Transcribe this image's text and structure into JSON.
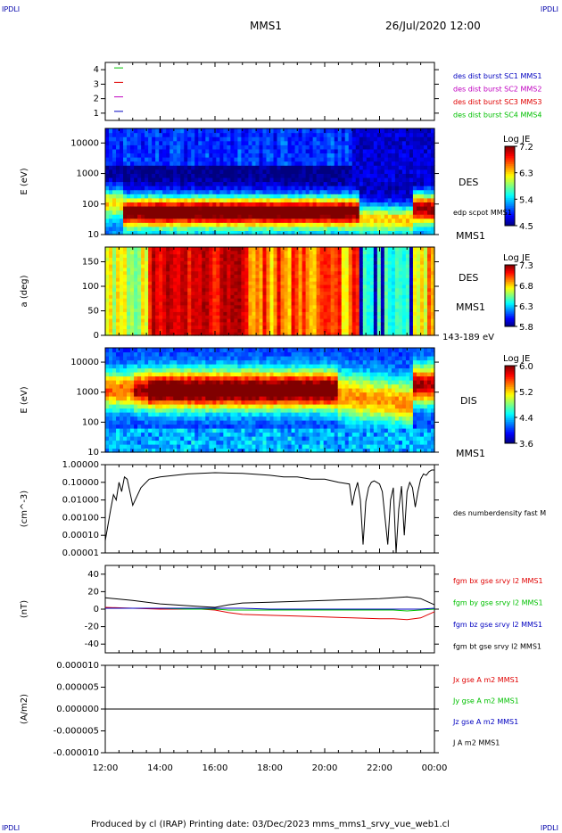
{
  "corner_label": "IPDLI",
  "header": {
    "spacecraft": "MMS1",
    "datetime": "26/Jul/2020 12:00"
  },
  "footer": "Produced by cl (IRAP)   Printing date: 03/Dec/2023   mms_mms1_srvy_vue_web1.cl",
  "chart_data": [
    {
      "type": "line",
      "panel": "spacecraft-availability",
      "ylim": [
        0.5,
        4.5
      ],
      "yticks": [
        "1",
        "2",
        "3",
        "4"
      ],
      "marks": [
        {
          "y": 4,
          "color": "#00c000"
        },
        {
          "y": 3,
          "color": "#e00000"
        },
        {
          "y": 2,
          "color": "#c000c0"
        },
        {
          "y": 1,
          "color": "#0000c0"
        }
      ],
      "legend": [
        {
          "label": "des dist burst SC1 MMS1",
          "color": "#0000c0"
        },
        {
          "label": "des dist burst SC2 MMS2",
          "color": "#c000c0"
        },
        {
          "label": "des dist burst SC3 MMS3",
          "color": "#e00000"
        },
        {
          "label": "des dist burst SC4 MMS4",
          "color": "#00c000"
        }
      ]
    },
    {
      "type": "heatmap",
      "panel": "des-energy",
      "ylabel": "E (eV)",
      "yscale": "log",
      "ylim": [
        10,
        30000
      ],
      "yticks": [
        "10",
        "100",
        "1000",
        "10000"
      ],
      "right_labels": [
        "DES",
        "edp scpot MMS1",
        "MMS1"
      ],
      "colorbar": {
        "title": "Log JE",
        "ticks": [
          "7.2",
          "6.3",
          "5.4",
          "4.5"
        ]
      }
    },
    {
      "type": "heatmap",
      "panel": "des-pitch-angle",
      "ylabel": "a (deg)",
      "ylim": [
        0,
        180
      ],
      "yticks": [
        "0",
        "50",
        "100",
        "150"
      ],
      "right_labels": [
        "DES",
        "MMS1",
        "143-189 eV"
      ],
      "colorbar": {
        "title": "Log JE",
        "ticks": [
          "7.3",
          "6.8",
          "6.3",
          "5.8"
        ]
      }
    },
    {
      "type": "heatmap",
      "panel": "dis-energy",
      "ylabel": "E (eV)",
      "yscale": "log",
      "ylim": [
        10,
        30000
      ],
      "yticks": [
        "10",
        "100",
        "1000",
        "10000"
      ],
      "right_labels": [
        "DIS",
        "MMS1"
      ],
      "colorbar": {
        "title": "Log JE",
        "ticks": [
          "6.0",
          "5.2",
          "4.4",
          "3.6"
        ]
      }
    },
    {
      "type": "line",
      "panel": "density",
      "ylabel": "(cm^-3)",
      "yscale": "log",
      "ylim": [
        1e-05,
        1
      ],
      "yticks": [
        "0.00001",
        "0.00010",
        "0.00100",
        "0.01000",
        "0.10000",
        "1.00000"
      ],
      "series": [
        {
          "name": "des numberdensity fast M",
          "color": "#000000",
          "x": [
            12.0,
            12.2,
            12.3,
            12.4,
            12.5,
            12.6,
            12.7,
            12.8,
            13.0,
            13.3,
            13.6,
            14.0,
            15.0,
            16.0,
            17.0,
            18.0,
            18.5,
            19.0,
            19.5,
            20.0,
            20.5,
            20.9,
            21.0,
            21.1,
            21.2,
            21.3,
            21.4,
            21.5,
            21.6,
            21.7,
            21.8,
            21.9,
            22.0,
            22.1,
            22.2,
            22.3,
            22.4,
            22.5,
            22.6,
            22.7,
            22.8,
            22.9,
            23.0,
            23.1,
            23.2,
            23.3,
            23.4,
            23.5,
            23.6,
            23.7,
            23.8,
            23.9,
            24.0
          ],
          "y": [
            5e-05,
            0.003,
            0.02,
            0.01,
            0.1,
            0.03,
            0.2,
            0.15,
            0.005,
            0.05,
            0.15,
            0.2,
            0.3,
            0.35,
            0.32,
            0.25,
            0.2,
            0.2,
            0.15,
            0.15,
            0.1,
            0.08,
            0.005,
            0.03,
            0.1,
            0.01,
            3e-05,
            0.008,
            0.05,
            0.1,
            0.12,
            0.1,
            0.08,
            0.03,
            0.001,
            3e-05,
            0.01,
            0.05,
            1e-05,
            0.003,
            0.06,
            0.0001,
            0.03,
            0.1,
            0.05,
            0.004,
            0.03,
            0.15,
            0.3,
            0.25,
            0.4,
            0.5,
            0.5
          ]
        }
      ]
    },
    {
      "type": "line",
      "panel": "magnetic-field",
      "ylabel": "(nT)",
      "ylim": [
        -50,
        50
      ],
      "yticks": [
        "-40",
        "-20",
        "0",
        "20",
        "40"
      ],
      "x": [
        12.0,
        13.0,
        14.0,
        15.0,
        15.5,
        16.0,
        16.5,
        17.0,
        18.0,
        19.0,
        20.0,
        21.0,
        22.0,
        22.5,
        23.0,
        23.5,
        24.0
      ],
      "series": [
        {
          "name": "fgm bx gse srvy l2 MMS1",
          "color": "#e00000",
          "values": [
            2,
            1,
            0,
            0,
            0,
            -1,
            -4,
            -6,
            -7,
            -8,
            -9,
            -10,
            -11,
            -11,
            -12,
            -10,
            -3
          ]
        },
        {
          "name": "fgm by gse srvy l2 MMS1",
          "color": "#00c000",
          "values": [
            1,
            1,
            1,
            0,
            0,
            0,
            -1,
            -1,
            -1,
            -1,
            -1,
            -1,
            -1,
            -1,
            -2,
            -1,
            0
          ]
        },
        {
          "name": "fgm bz gse srvy l2 MMS1",
          "color": "#0000c0",
          "values": [
            1,
            1,
            1,
            1,
            1,
            1,
            1,
            1,
            0,
            0,
            0,
            0,
            0,
            0,
            0,
            0,
            1
          ]
        },
        {
          "name": "fgm bt gse srvy l2 MMS1",
          "color": "#000000",
          "values": [
            13,
            10,
            6,
            4,
            3,
            2,
            5,
            7,
            8,
            9,
            10,
            11,
            12,
            13,
            14,
            12,
            5
          ]
        }
      ]
    },
    {
      "type": "line",
      "panel": "current-density",
      "ylabel": "(A/m2)",
      "ylim": [
        -1e-05,
        1e-05
      ],
      "yticks": [
        "0.000010",
        "0.000005",
        "0.000000",
        "-0.000005",
        "-0.000010"
      ],
      "series": [
        {
          "name": "Jx gse A m2 MMS1",
          "color": "#e00000",
          "values": [
            0,
            0
          ]
        },
        {
          "name": "Jy gse A m2 MMS1",
          "color": "#00c000",
          "values": [
            0,
            0
          ]
        },
        {
          "name": "Jz gse A m2 MMS1",
          "color": "#0000c0",
          "values": [
            0,
            0
          ]
        },
        {
          "name": "J A m2 MMS1",
          "color": "#000000",
          "values": [
            0,
            0
          ]
        }
      ]
    }
  ],
  "xaxis": {
    "ticks": [
      "12:00",
      "14:00",
      "16:00",
      "18:00",
      "20:00",
      "22:00",
      "00:00"
    ],
    "range_hours": [
      12,
      24
    ]
  }
}
